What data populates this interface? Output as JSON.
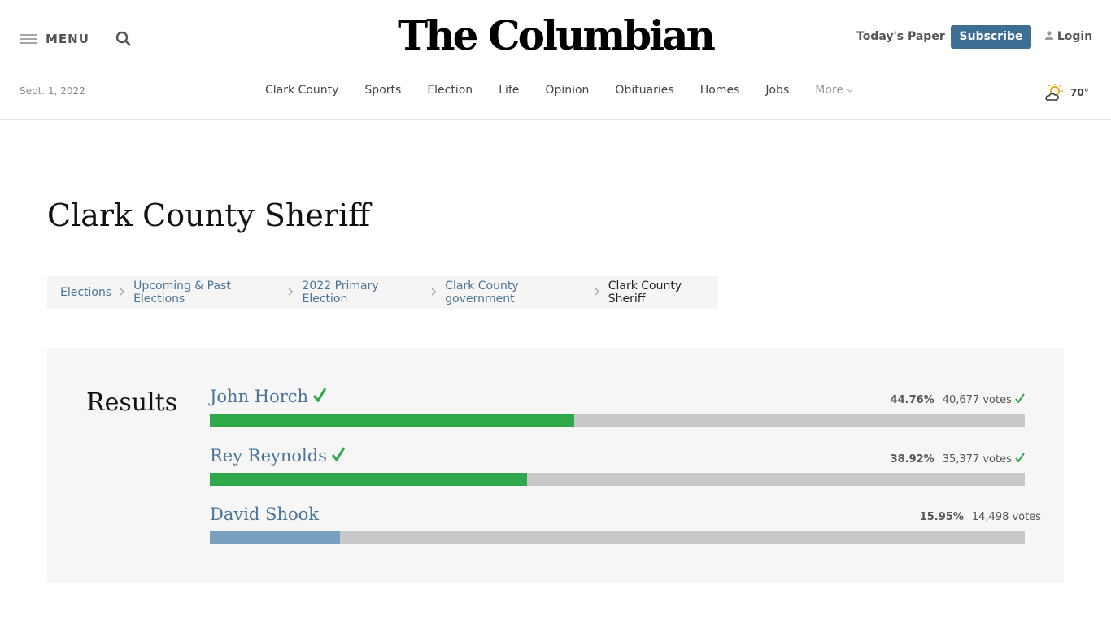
{
  "header": {
    "menu": "MENU",
    "logo": "The Columbian",
    "todays_paper": "Today's Paper",
    "subscribe": "Subscribe",
    "login": "Login",
    "date": "Sept. 1, 2022",
    "nav": [
      "Clark County",
      "Sports",
      "Election",
      "Life",
      "Opinion",
      "Obituaries",
      "Homes",
      "Jobs",
      "More"
    ],
    "weather": "70°"
  },
  "page": {
    "title": "Clark County Sheriff",
    "breadcrumbs": [
      "Elections",
      "Upcoming & Past Elections",
      "2022 Primary Election",
      "Clark County government",
      "Clark County Sheriff"
    ]
  },
  "results": {
    "heading": "Results",
    "candidates": [
      {
        "name": "John Horch",
        "percent": 44.76,
        "percent_label": "44.76%",
        "votes": "40,677 votes",
        "winner": true
      },
      {
        "name": "Rey Reynolds",
        "percent": 38.92,
        "percent_label": "38.92%",
        "votes": "35,377 votes",
        "winner": true
      },
      {
        "name": "David Shook",
        "percent": 15.95,
        "percent_label": "15.95%",
        "votes": "14,498 votes",
        "winner": false
      }
    ]
  }
}
